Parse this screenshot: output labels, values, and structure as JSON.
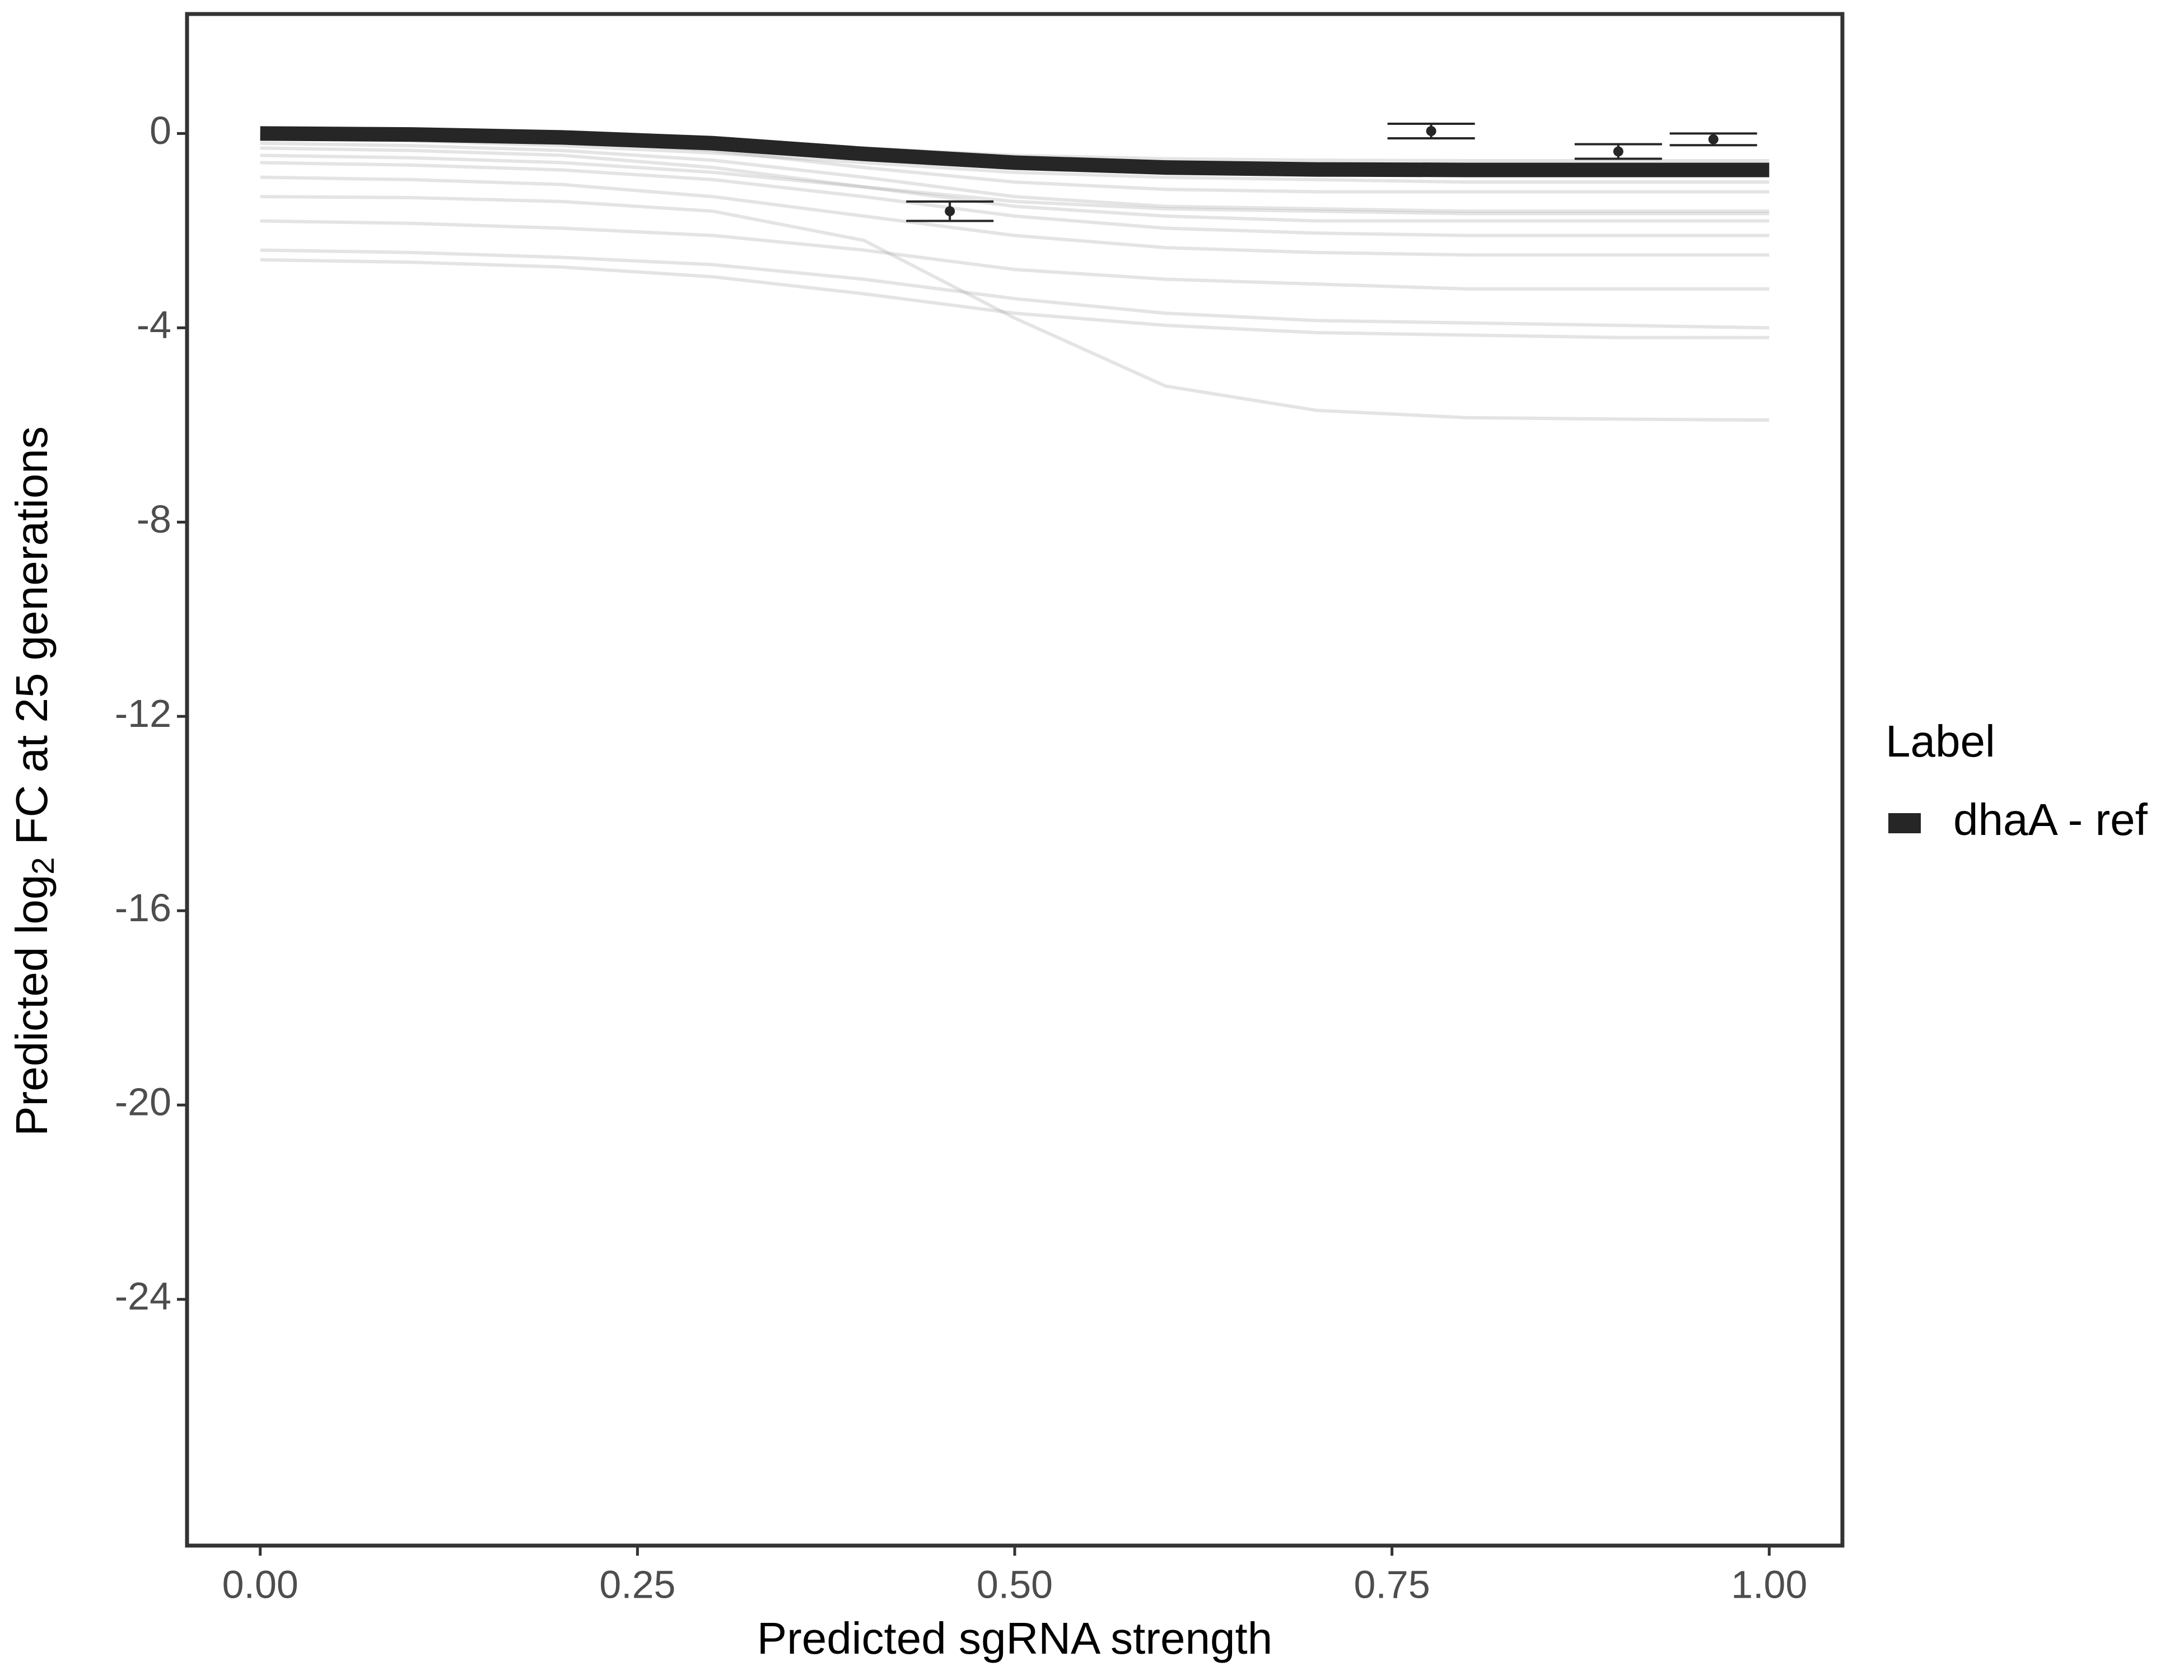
{
  "chart_data": {
    "type": "line",
    "x_label": "Predicted sgRNA strength",
    "y_label": "Predicted  log",
    "y_label_sub": "2",
    "y_label_end": " FC at 25 generations",
    "legend_title": "Label",
    "legend_position": "right",
    "x": [
      0,
      0.1,
      0.2,
      0.3,
      0.4,
      0.5,
      0.6,
      0.7,
      0.8,
      0.9,
      1.0
    ],
    "series": [
      {
        "name": "dhaA - ref",
        "color": "#262626",
        "values": [
          0,
          -0.02,
          -0.08,
          -0.2,
          -0.42,
          -0.6,
          -0.7,
          -0.74,
          -0.75,
          -0.75,
          -0.75
        ]
      }
    ],
    "draws": {
      "color": "#a6a6a6",
      "values": [
        [
          0,
          -0.01,
          -0.05,
          -0.15,
          -0.3,
          -0.45,
          -0.52,
          -0.55,
          -0.56,
          -0.56,
          -0.56
        ],
        [
          0,
          -0.05,
          -0.15,
          -0.35,
          -0.7,
          -1.0,
          -1.15,
          -1.2,
          -1.2,
          -1.2,
          -1.2
        ],
        [
          -0.3,
          -0.35,
          -0.45,
          -0.7,
          -1.1,
          -1.5,
          -1.7,
          -1.8,
          -1.8,
          -1.8,
          -1.8
        ],
        [
          -0.1,
          -0.15,
          -0.25,
          -0.4,
          -0.6,
          -0.8,
          -0.9,
          -0.95,
          -1.0,
          -1.0,
          -1.0
        ],
        [
          -0.6,
          -0.65,
          -0.75,
          -0.95,
          -1.3,
          -1.7,
          -1.95,
          -2.05,
          -2.1,
          -2.1,
          -2.1
        ],
        [
          -0.9,
          -0.95,
          -1.05,
          -1.3,
          -1.7,
          -2.1,
          -2.35,
          -2.45,
          -2.5,
          -2.5,
          -2.5
        ],
        [
          -1.3,
          -1.32,
          -1.4,
          -1.6,
          -2.2,
          -3.8,
          -5.2,
          -5.7,
          -5.85,
          -5.88,
          -5.9
        ],
        [
          -1.8,
          -1.85,
          -1.95,
          -2.1,
          -2.4,
          -2.8,
          -3.0,
          -3.1,
          -3.2,
          -3.2,
          -3.2
        ],
        [
          -2.4,
          -2.45,
          -2.55,
          -2.7,
          -3.0,
          -3.4,
          -3.7,
          -3.85,
          -3.9,
          -3.95,
          -4.0
        ],
        [
          -2.6,
          -2.65,
          -2.75,
          -2.95,
          -3.3,
          -3.7,
          -3.95,
          -4.1,
          -4.15,
          -4.2,
          -4.2
        ],
        [
          -0.2,
          -0.25,
          -0.35,
          -0.55,
          -0.9,
          -1.3,
          -1.5,
          -1.55,
          -1.6,
          -1.6,
          -1.6
        ],
        [
          -0.45,
          -0.5,
          -0.6,
          -0.8,
          -1.1,
          -1.4,
          -1.55,
          -1.6,
          -1.65,
          -1.65,
          -1.65
        ]
      ]
    },
    "points": {
      "color": "#262626",
      "x": [
        0.457,
        0.776,
        0.9,
        0.963
      ],
      "values": [
        -1.6,
        0.05,
        -0.37,
        -0.12
      ],
      "errors": [
        0.2,
        0.15,
        0.15,
        0.12
      ]
    },
    "xlim": [
      -0.0485,
      1.0485
    ],
    "ylim": [
      -29.07,
      2.46
    ],
    "xticks": [
      {
        "value": 0,
        "label": "0.00"
      },
      {
        "value": 0.25,
        "label": "0.25"
      },
      {
        "value": 0.5,
        "label": "0.50"
      },
      {
        "value": 0.75,
        "label": "0.75"
      },
      {
        "value": 1,
        "label": "1.00"
      }
    ],
    "yticks": [
      0,
      -4,
      -8,
      -12,
      -16,
      -20,
      -24
    ],
    "grid": false
  }
}
